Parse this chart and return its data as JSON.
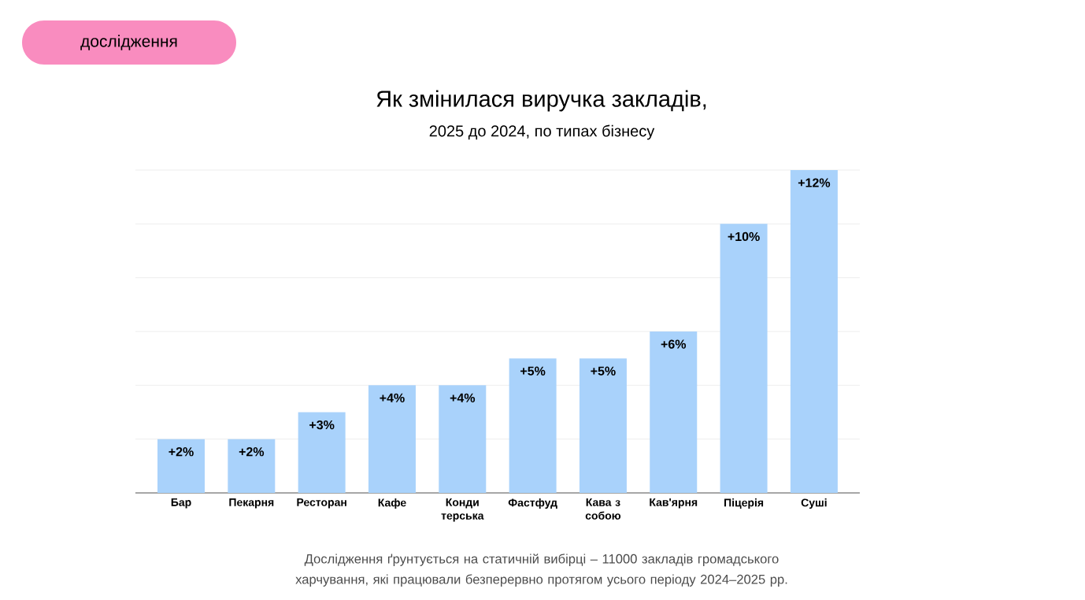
{
  "chart_data": {
    "type": "bar",
    "title": "Як змінилася виручка закладів,",
    "subtitle": "2025 до 2024, по типах бізнесу",
    "categories": [
      "Бар",
      "Пекарня",
      "Ресторан",
      "Кафе",
      "Конди терська",
      "Фастфуд",
      "Кава з собою",
      "Кав'ярня",
      "Піцерія",
      "Суші"
    ],
    "values": [
      2,
      2,
      3,
      4,
      4,
      5,
      5,
      6,
      10,
      12
    ],
    "value_labels": [
      "+2%",
      "+2%",
      "+3%",
      "+4%",
      "+4%",
      "+5%",
      "+5%",
      "+6%",
      "+10%",
      "+12%"
    ],
    "color": "#a9d2fb",
    "ylim": [
      0,
      12
    ],
    "grid": "y",
    "tick_labels": "x",
    "annotations": [
      "дослідження",
      "Дослідження ґрунтується на статичній вибірці – 11000 закладів громадського харчування, які працювали безперервно протягом усього періоду 2024–2025 рр."
    ]
  }
}
